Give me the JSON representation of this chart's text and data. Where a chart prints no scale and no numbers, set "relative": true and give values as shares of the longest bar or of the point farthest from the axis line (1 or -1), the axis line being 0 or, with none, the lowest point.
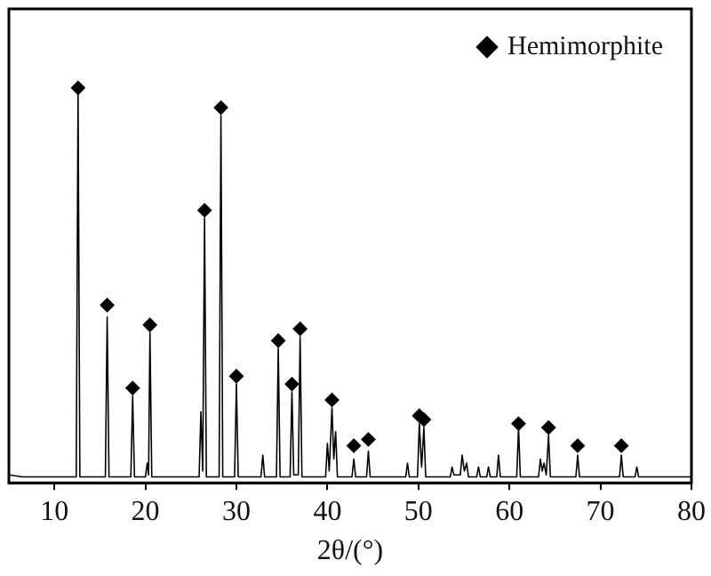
{
  "chart_data": {
    "type": "line",
    "relative": true,
    "xlabel": "2θ/(°)",
    "xlim": [
      5,
      80
    ],
    "xticks": [
      10,
      20,
      30,
      40,
      50,
      60,
      70,
      80
    ],
    "grid": false,
    "legend": "top right",
    "series": [
      {
        "color": "#000000",
        "marker": "none",
        "x": [
          5,
          6.5,
          10,
          12.4,
          12.6,
          12.8,
          15.6,
          15.8,
          16.0,
          18.4,
          18.6,
          18.8,
          20.0,
          20.2,
          20.35,
          20.5,
          20.7,
          25.9,
          26.1,
          26.3,
          26.5,
          26.7,
          28.1,
          28.3,
          28.5,
          29.8,
          30.0,
          30.2,
          32.7,
          32.9,
          33.1,
          34.4,
          34.6,
          34.8,
          35.9,
          36.1,
          36.3,
          36.5,
          36.8,
          37.0,
          37.2,
          39.8,
          40.0,
          40.2,
          40.5,
          40.7,
          40.9,
          41.1,
          42.7,
          42.9,
          43.1,
          44.3,
          44.5,
          44.7,
          48.6,
          48.8,
          49.0,
          49.9,
          50.1,
          50.35,
          50.6,
          50.8,
          53.5,
          53.7,
          53.9,
          54.6,
          54.8,
          55.05,
          55.3,
          55.5,
          56.4,
          56.6,
          56.8,
          57.5,
          57.7,
          57.9,
          58.6,
          58.8,
          59.0,
          60.8,
          61.0,
          61.2,
          63.2,
          63.4,
          63.6,
          63.8,
          64.05,
          64.3,
          64.5,
          67.3,
          67.5,
          67.7,
          72.1,
          72.3,
          72.5,
          73.8,
          74.0,
          74.2,
          80
        ],
        "values": [
          0.02,
          0.015,
          0.015,
          0.015,
          0.99,
          0.015,
          0.015,
          0.42,
          0.015,
          0.015,
          0.22,
          0.015,
          0.015,
          0.05,
          0.02,
          0.38,
          0.015,
          0.015,
          0.18,
          0.03,
          0.67,
          0.015,
          0.015,
          0.93,
          0.015,
          0.015,
          0.25,
          0.015,
          0.015,
          0.07,
          0.015,
          0.015,
          0.34,
          0.015,
          0.015,
          0.23,
          0.02,
          0.02,
          0.02,
          0.37,
          0.015,
          0.015,
          0.1,
          0.03,
          0.19,
          0.06,
          0.13,
          0.015,
          0.015,
          0.06,
          0.015,
          0.015,
          0.08,
          0.015,
          0.015,
          0.05,
          0.015,
          0.015,
          0.15,
          0.04,
          0.14,
          0.015,
          0.015,
          0.04,
          0.02,
          0.02,
          0.07,
          0.03,
          0.05,
          0.015,
          0.015,
          0.04,
          0.015,
          0.015,
          0.04,
          0.015,
          0.015,
          0.07,
          0.015,
          0.015,
          0.14,
          0.015,
          0.015,
          0.06,
          0.03,
          0.05,
          0.02,
          0.12,
          0.015,
          0.015,
          0.07,
          0.015,
          0.015,
          0.07,
          0.015,
          0.015,
          0.04,
          0.015,
          0.015
        ]
      },
      {
        "type": "scatter",
        "name": "Hemimorphite",
        "color": "#000000",
        "marker": "diamond",
        "x": [
          12.6,
          15.8,
          18.6,
          20.5,
          26.5,
          28.3,
          30.0,
          34.6,
          36.1,
          37.0,
          40.5,
          42.9,
          44.5,
          50.1,
          50.6,
          61.0,
          64.3,
          67.5,
          72.3
        ],
        "values": [
          1.0,
          0.45,
          0.24,
          0.4,
          0.69,
          0.95,
          0.27,
          0.36,
          0.25,
          0.39,
          0.21,
          0.094,
          0.11,
          0.17,
          0.16,
          0.15,
          0.14,
          0.094,
          0.094
        ]
      }
    ]
  }
}
